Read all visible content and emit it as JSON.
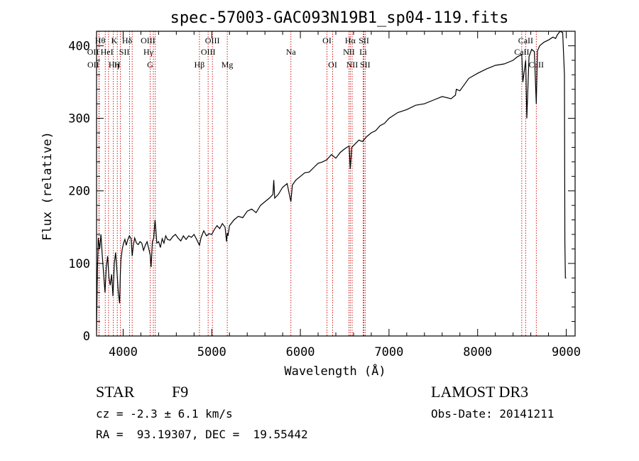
{
  "chart_data": {
    "type": "line",
    "title": "spec-57003-GAC093N19B1_sp04-119.fits",
    "xlabel": "Wavelength (Å)",
    "ylabel": "Flux (relative)",
    "xlim": [
      3700,
      9100
    ],
    "ylim": [
      0,
      420
    ],
    "xticks": [
      4000,
      5000,
      6000,
      7000,
      8000,
      9000
    ],
    "yticks": [
      0,
      100,
      200,
      300,
      400
    ],
    "grid": false,
    "series": [
      {
        "name": "flux",
        "x": [
          3700,
          3710,
          3720,
          3735,
          3750,
          3765,
          3780,
          3795,
          3810,
          3825,
          3840,
          3855,
          3870,
          3885,
          3900,
          3915,
          3930,
          3945,
          3960,
          3968,
          3975,
          3990,
          4005,
          4020,
          4035,
          4050,
          4070,
          4090,
          4102,
          4115,
          4130,
          4150,
          4170,
          4190,
          4210,
          4230,
          4250,
          4270,
          4290,
          4305,
          4315,
          4330,
          4345,
          4360,
          4380,
          4400,
          4420,
          4440,
          4460,
          4480,
          4500,
          4530,
          4560,
          4590,
          4620,
          4650,
          4680,
          4710,
          4740,
          4770,
          4800,
          4830,
          4861,
          4880,
          4910,
          4940,
          4970,
          5000,
          5030,
          5060,
          5090,
          5120,
          5150,
          5167,
          5175,
          5183,
          5200,
          5250,
          5300,
          5350,
          5400,
          5450,
          5500,
          5550,
          5600,
          5650,
          5690,
          5700,
          5710,
          5750,
          5800,
          5850,
          5893,
          5910,
          5950,
          6000,
          6050,
          6100,
          6150,
          6200,
          6250,
          6300,
          6350,
          6400,
          6450,
          6500,
          6550,
          6563,
          6580,
          6620,
          6660,
          6700,
          6750,
          6800,
          6850,
          6900,
          6950,
          7000,
          7100,
          7200,
          7300,
          7400,
          7500,
          7600,
          7700,
          7750,
          7760,
          7800,
          7900,
          8000,
          8100,
          8200,
          8300,
          8400,
          8450,
          8498,
          8510,
          8542,
          8555,
          8580,
          8610,
          8640,
          8662,
          8675,
          8700,
          8750,
          8800,
          8850,
          8880,
          8900,
          8930,
          8960,
          8980,
          8985,
          8990,
          9000
        ],
        "values": [
          8,
          90,
          135,
          120,
          140,
          110,
          85,
          60,
          95,
          110,
          80,
          70,
          85,
          55,
          100,
          115,
          90,
          60,
          45,
          85,
          105,
          120,
          128,
          133,
          125,
          132,
          138,
          134,
          110,
          125,
          135,
          128,
          126,
          130,
          128,
          118,
          125,
          130,
          120,
          112,
          95,
          130,
          135,
          160,
          128,
          130,
          122,
          134,
          128,
          138,
          133,
          132,
          137,
          140,
          135,
          131,
          138,
          133,
          138,
          136,
          140,
          133,
          125,
          136,
          145,
          138,
          141,
          140,
          147,
          152,
          148,
          155,
          150,
          130,
          142,
          138,
          152,
          160,
          165,
          163,
          172,
          175,
          170,
          180,
          185,
          190,
          195,
          215,
          190,
          195,
          205,
          210,
          185,
          208,
          215,
          220,
          225,
          226,
          232,
          238,
          240,
          243,
          250,
          245,
          253,
          258,
          262,
          230,
          260,
          265,
          270,
          268,
          275,
          280,
          283,
          290,
          293,
          300,
          308,
          312,
          318,
          320,
          325,
          330,
          327,
          332,
          340,
          338,
          355,
          362,
          368,
          373,
          375,
          380,
          385,
          388,
          350,
          380,
          300,
          385,
          395,
          392,
          320,
          393,
          400,
          405,
          408,
          412,
          410,
          415,
          420,
          418,
          360,
          130,
          80,
          80
        ]
      }
    ],
    "line_labels": [
      {
        "label": "Hθ",
        "wl": 3798,
        "row": 0,
        "anchor": "end"
      },
      {
        "label": "OII",
        "wl": 3727,
        "row": 1,
        "anchor": "end"
      },
      {
        "label": "OII",
        "wl": 3729,
        "row": 2,
        "anchor": "end"
      },
      {
        "label": "Hη",
        "wl": 3835,
        "row": 2,
        "anchor": "start"
      },
      {
        "label": "HeI",
        "wl": 3889,
        "row": 1,
        "anchor": "end"
      },
      {
        "label": "K",
        "wl": 3934,
        "row": 0,
        "anchor": "end"
      },
      {
        "label": "H",
        "wl": 3969,
        "row": 2,
        "anchor": "end"
      },
      {
        "label": "SII",
        "wl": 4072,
        "row": 1,
        "anchor": "end"
      },
      {
        "label": "Hδ",
        "wl": 4102,
        "row": 0,
        "anchor": "end"
      },
      {
        "label": "OIII",
        "wl": 4363,
        "row": 0,
        "anchor": "end"
      },
      {
        "label": "Hγ",
        "wl": 4341,
        "row": 1,
        "anchor": "end"
      },
      {
        "label": "G",
        "wl": 4305,
        "row": 2,
        "anchor": "middle"
      },
      {
        "label": "Hβ",
        "wl": 4861,
        "row": 2,
        "anchor": "middle"
      },
      {
        "label": "OIII",
        "wl": 5007,
        "row": 0,
        "anchor": "middle"
      },
      {
        "label": "OIII",
        "wl": 4959,
        "row": 1,
        "anchor": "middle"
      },
      {
        "label": "Mg",
        "wl": 5175,
        "row": 2,
        "anchor": "middle"
      },
      {
        "label": "Na",
        "wl": 5893,
        "row": 1,
        "anchor": "middle"
      },
      {
        "label": "OI",
        "wl": 6300,
        "row": 0,
        "anchor": "middle"
      },
      {
        "label": "OI",
        "wl": 6364,
        "row": 2,
        "anchor": "middle"
      },
      {
        "label": "Hα",
        "wl": 6563,
        "row": 0,
        "anchor": "middle"
      },
      {
        "label": "NII",
        "wl": 6548,
        "row": 1,
        "anchor": "middle"
      },
      {
        "label": "NII",
        "wl": 6584,
        "row": 2,
        "anchor": "middle"
      },
      {
        "label": "SII",
        "wl": 6717,
        "row": 0,
        "anchor": "middle"
      },
      {
        "label": "Li",
        "wl": 6708,
        "row": 1,
        "anchor": "middle"
      },
      {
        "label": "SII",
        "wl": 6731,
        "row": 2,
        "anchor": "middle"
      },
      {
        "label": "CaII",
        "wl": 8542,
        "row": 0,
        "anchor": "middle"
      },
      {
        "label": "CaII",
        "wl": 8498,
        "row": 1,
        "anchor": "middle"
      },
      {
        "label": "CaII",
        "wl": 8662,
        "row": 2,
        "anchor": "middle"
      }
    ],
    "line_markers": [
      3727,
      3729,
      3798,
      3835,
      3889,
      3934,
      3969,
      4072,
      4102,
      4305,
      4341,
      4363,
      4861,
      4959,
      5007,
      5175,
      5893,
      6300,
      6364,
      6548,
      6563,
      6584,
      6708,
      6717,
      6731,
      8498,
      8542,
      8662
    ],
    "colors": {
      "spectrum": "#000000",
      "markers": "#cc0000",
      "axes": "#000000"
    }
  },
  "info": {
    "class": "STAR",
    "subclass": "F9",
    "survey": "LAMOST DR3",
    "redshift": "cz = -2.3 ± 6.1 km/s",
    "obs_date": "Obs-Date: 20141211",
    "coords": "RA =  93.19307, DEC =  19.55442"
  }
}
